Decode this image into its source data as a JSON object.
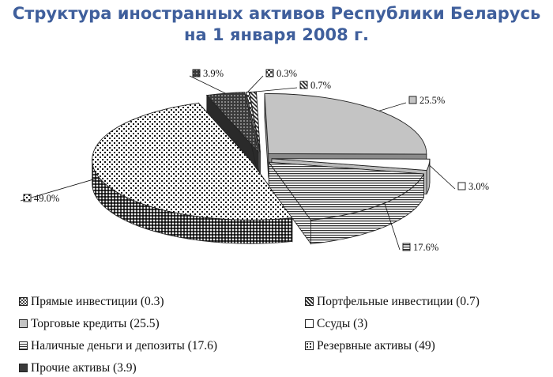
{
  "title_line1": "Структура иностранных активов Республики Беларусь",
  "title_line2": "на 1 января 2008 г.",
  "chart_data": {
    "type": "pie",
    "title": "Структура иностранных активов Республики Беларусь на 1 января 2008 г.",
    "slices": [
      {
        "name": "Прямые инвестиции",
        "value": 0.3,
        "label": "0.3%",
        "legend": "Прямые инвестиции (0.3)",
        "pattern": "checker"
      },
      {
        "name": "Портфельные инвестиции",
        "value": 0.7,
        "label": "0.7%",
        "legend": "Портфельные инвестиции (0.7)",
        "pattern": "diag"
      },
      {
        "name": "Торговые кредиты",
        "value": 25.5,
        "label": "25.5%",
        "legend": "Торговые кредиты (25.5)",
        "pattern": "gray"
      },
      {
        "name": "Ссуды",
        "value": 3,
        "label": "3.0%",
        "legend": "Ссуды (3)",
        "pattern": "white"
      },
      {
        "name": "Наличные деньги и депозиты",
        "value": 17.6,
        "label": "17.6%",
        "legend": "Наличные деньги и депозиты (17.6)",
        "pattern": "hlines"
      },
      {
        "name": "Резервные активы",
        "value": 49,
        "label": "49.0%",
        "legend": "Резервные активы (49)",
        "pattern": "dots"
      },
      {
        "name": "Прочие активы",
        "value": 3.9,
        "label": "3.9%",
        "legend": "Прочие активы (3.9)",
        "pattern": "dark"
      }
    ],
    "legend_position": "bottom",
    "exploded": true,
    "three_d": true
  }
}
